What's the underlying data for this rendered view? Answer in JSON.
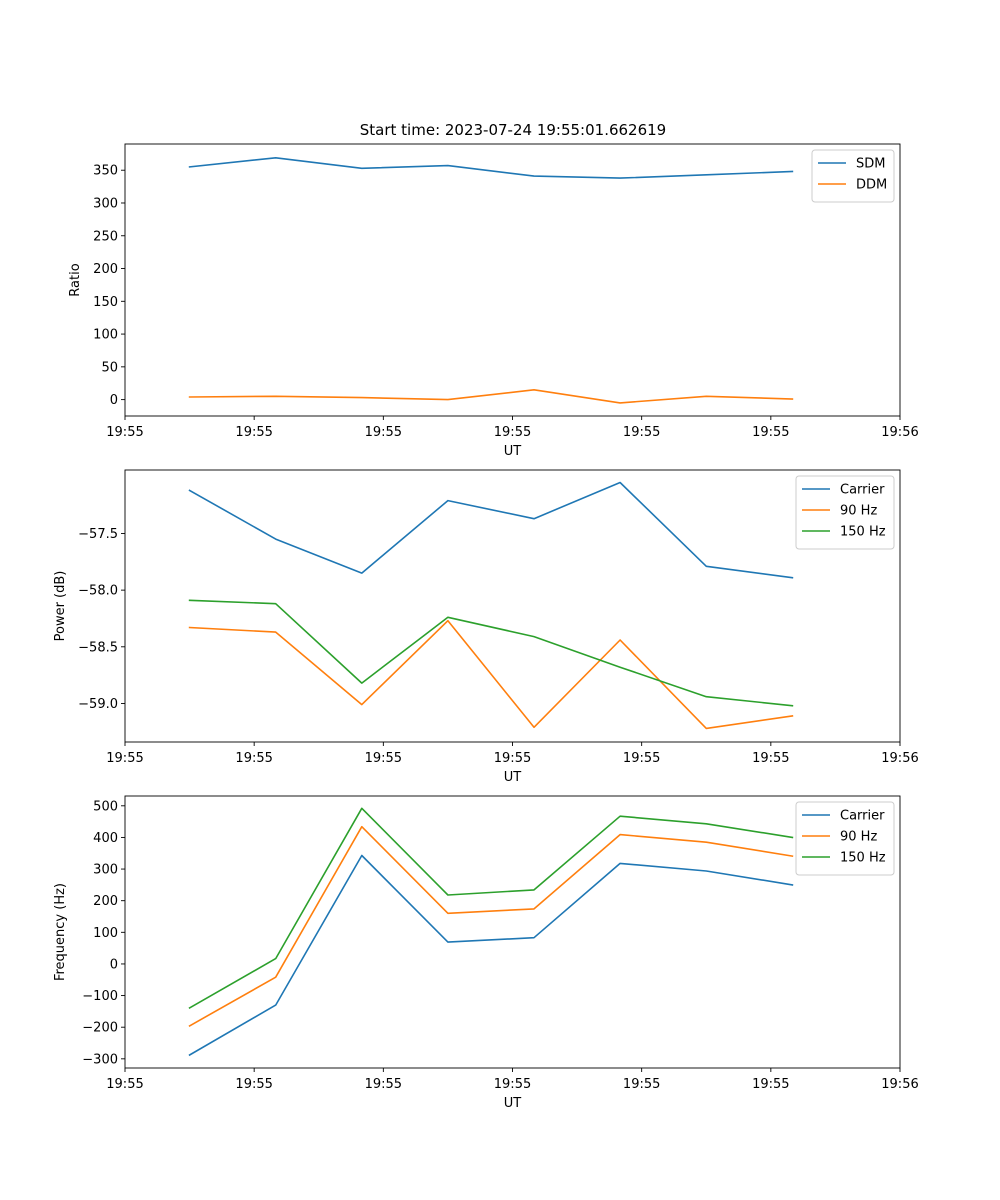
{
  "figure": {
    "title": "Start time: 2023-07-24 19:55:01.662619"
  },
  "colors": {
    "blue": "#1f77b4",
    "orange": "#ff7f0e",
    "green": "#2ca02c"
  },
  "chart_data": [
    {
      "type": "line",
      "title": "Start time: 2023-07-24 19:55:01.662619",
      "xlabel": "UT",
      "ylabel": "Ratio",
      "x": [
        1,
        2,
        3,
        4,
        5,
        6,
        7,
        8
      ],
      "xlim": [
        0.25,
        9.25
      ],
      "ylim": [
        -25,
        390
      ],
      "xticks": [
        {
          "pos": 0.25,
          "label": "19:55"
        },
        {
          "pos": 1.75,
          "label": "19:55"
        },
        {
          "pos": 3.25,
          "label": "19:55"
        },
        {
          "pos": 4.75,
          "label": "19:55"
        },
        {
          "pos": 6.25,
          "label": "19:55"
        },
        {
          "pos": 7.75,
          "label": "19:55"
        },
        {
          "pos": 9.25,
          "label": "19:56"
        }
      ],
      "yticks": [
        0,
        50,
        100,
        150,
        200,
        250,
        300,
        350
      ],
      "ytick_labels": [
        "0",
        "50",
        "100",
        "150",
        "200",
        "250",
        "300",
        "350"
      ],
      "legend_position": "top-right",
      "series": [
        {
          "name": "SDM",
          "color": "#1f77b4",
          "values": [
            355,
            369,
            353,
            357,
            341,
            338,
            343,
            348
          ]
        },
        {
          "name": "DDM",
          "color": "#ff7f0e",
          "values": [
            4,
            5,
            3,
            0,
            15,
            -5,
            5,
            1
          ]
        }
      ]
    },
    {
      "type": "line",
      "title": "",
      "xlabel": "UT",
      "ylabel": "Power (dB)",
      "x": [
        1,
        2,
        3,
        4,
        5,
        6,
        7,
        8
      ],
      "xlim": [
        0.25,
        9.25
      ],
      "ylim": [
        -59.34,
        -56.94
      ],
      "xticks": [
        {
          "pos": 0.25,
          "label": "19:55"
        },
        {
          "pos": 1.75,
          "label": "19:55"
        },
        {
          "pos": 3.25,
          "label": "19:55"
        },
        {
          "pos": 4.75,
          "label": "19:55"
        },
        {
          "pos": 6.25,
          "label": "19:55"
        },
        {
          "pos": 7.75,
          "label": "19:55"
        },
        {
          "pos": 9.25,
          "label": "19:56"
        }
      ],
      "yticks": [
        -57.5,
        -58.0,
        -58.5,
        -59.0
      ],
      "ytick_labels": [
        "−57.5",
        "−58.0",
        "−58.5",
        "−59.0"
      ],
      "legend_position": "top-right",
      "series": [
        {
          "name": "Carrier",
          "color": "#1f77b4",
          "values": [
            -57.12,
            -57.55,
            -57.85,
            -57.21,
            -57.37,
            -57.05,
            -57.79,
            -57.89
          ]
        },
        {
          "name": "90 Hz",
          "color": "#ff7f0e",
          "values": [
            -58.33,
            -58.37,
            -59.01,
            -58.27,
            -59.21,
            -58.44,
            -59.22,
            -59.11
          ]
        },
        {
          "name": "150 Hz",
          "color": "#2ca02c",
          "values": [
            -58.09,
            -58.12,
            -58.82,
            -58.24,
            -58.41,
            -58.68,
            -58.94,
            -59.02
          ]
        }
      ]
    },
    {
      "type": "line",
      "title": "",
      "xlabel": "UT",
      "ylabel": "Frequency (Hz)",
      "x": [
        1,
        2,
        3,
        4,
        5,
        6,
        7,
        8
      ],
      "xlim": [
        0.25,
        9.25
      ],
      "ylim": [
        -329,
        531
      ],
      "xticks": [
        {
          "pos": 0.25,
          "label": "19:55"
        },
        {
          "pos": 1.75,
          "label": "19:55"
        },
        {
          "pos": 3.25,
          "label": "19:55"
        },
        {
          "pos": 4.75,
          "label": "19:55"
        },
        {
          "pos": 6.25,
          "label": "19:55"
        },
        {
          "pos": 7.75,
          "label": "19:55"
        },
        {
          "pos": 9.25,
          "label": "19:56"
        }
      ],
      "yticks": [
        -300,
        -200,
        -100,
        0,
        100,
        200,
        300,
        400,
        500
      ],
      "ytick_labels": [
        "−300",
        "−200",
        "−100",
        "0",
        "100",
        "200",
        "300",
        "400",
        "500"
      ],
      "legend_position": "top-right",
      "series": [
        {
          "name": "Carrier",
          "color": "#1f77b4",
          "values": [
            -288,
            -130,
            343,
            69,
            83,
            318,
            294,
            250
          ]
        },
        {
          "name": "90 Hz",
          "color": "#ff7f0e",
          "values": [
            -196,
            -42,
            434,
            160,
            174,
            409,
            385,
            341
          ]
        },
        {
          "name": "150 Hz",
          "color": "#2ca02c",
          "values": [
            -139,
            17,
            492,
            218,
            234,
            467,
            443,
            400
          ]
        }
      ]
    }
  ]
}
